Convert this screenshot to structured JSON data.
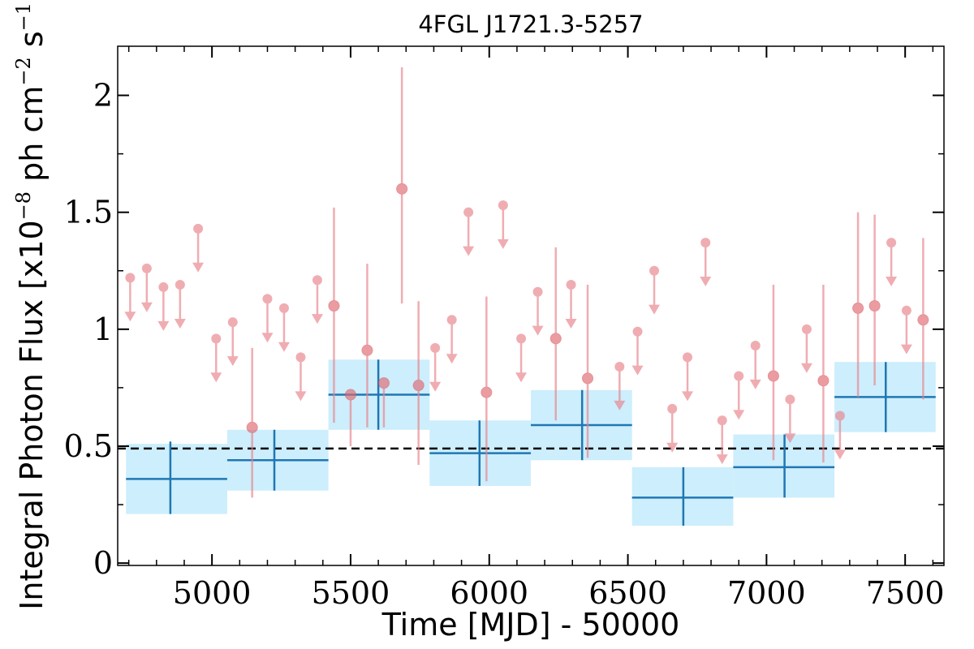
{
  "chart_data": {
    "type": "scatter",
    "title": "4FGL J1721.3-5257",
    "xlabel": "Time [MJD] - 50000",
    "ylabel": {
      "prefix": "Integral Photon Flux [x10",
      "exp1": "−8",
      "mid": " ph cm",
      "exp2": "−2",
      "mid2": " s",
      "exp3": "−1",
      "suffix": "]"
    },
    "xlim": [
      4660,
      7640
    ],
    "ylim": [
      -0.01,
      2.21
    ],
    "xticks": [
      5000,
      5500,
      6000,
      6500,
      7000,
      7500
    ],
    "xtick_labels": [
      "5000",
      "5500",
      "6000",
      "6500",
      "7000",
      "7500"
    ],
    "yticks": [
      0,
      0.5,
      1,
      1.5,
      2
    ],
    "ytick_labels": [
      "0",
      "0.5",
      "1",
      "1.5",
      "2"
    ],
    "reference_line": 0.49,
    "colors": {
      "monthly": "#e8828a",
      "yearly_line": "#1f77b4",
      "yearly_box": "#cdeefc",
      "reference": "#000000"
    },
    "monthly_detections": [
      {
        "x": 5145,
        "y": 0.58,
        "lo": 0.28,
        "hi": 0.92
      },
      {
        "x": 5440,
        "y": 1.1,
        "lo": 0.6,
        "hi": 1.52
      },
      {
        "x": 5500,
        "y": 0.72,
        "lo": 0.5,
        "hi": 0.72
      },
      {
        "x": 5560,
        "y": 0.91,
        "lo": 0.58,
        "hi": 1.28
      },
      {
        "x": 5620,
        "y": 0.77,
        "lo": 0.58,
        "hi": 0.77
      },
      {
        "x": 5685,
        "y": 1.6,
        "lo": 1.11,
        "hi": 2.12
      },
      {
        "x": 5745,
        "y": 0.76,
        "lo": 0.42,
        "hi": 1.12
      },
      {
        "x": 5990,
        "y": 0.73,
        "lo": 0.35,
        "hi": 1.14
      },
      {
        "x": 6240,
        "y": 0.96,
        "lo": 0.61,
        "hi": 1.35
      },
      {
        "x": 6355,
        "y": 0.79,
        "lo": 0.45,
        "hi": 1.19
      },
      {
        "x": 7025,
        "y": 0.8,
        "lo": 0.44,
        "hi": 1.19
      },
      {
        "x": 7205,
        "y": 0.78,
        "lo": 0.43,
        "hi": 1.19
      },
      {
        "x": 7330,
        "y": 1.09,
        "lo": 0.71,
        "hi": 1.5
      },
      {
        "x": 7390,
        "y": 1.1,
        "lo": 0.76,
        "hi": 1.49
      },
      {
        "x": 7565,
        "y": 1.04,
        "lo": 0.7,
        "hi": 1.39
      }
    ],
    "monthly_upper_limits": [
      {
        "x": 4705,
        "y": 1.22
      },
      {
        "x": 4765,
        "y": 1.26
      },
      {
        "x": 4825,
        "y": 1.18
      },
      {
        "x": 4885,
        "y": 1.19
      },
      {
        "x": 4950,
        "y": 1.43
      },
      {
        "x": 5015,
        "y": 0.96
      },
      {
        "x": 5075,
        "y": 1.03
      },
      {
        "x": 5200,
        "y": 1.13
      },
      {
        "x": 5260,
        "y": 1.09
      },
      {
        "x": 5320,
        "y": 0.88
      },
      {
        "x": 5380,
        "y": 1.21
      },
      {
        "x": 5805,
        "y": 0.92
      },
      {
        "x": 5865,
        "y": 1.04
      },
      {
        "x": 5925,
        "y": 1.5
      },
      {
        "x": 6050,
        "y": 1.53
      },
      {
        "x": 6115,
        "y": 0.96
      },
      {
        "x": 6175,
        "y": 1.16
      },
      {
        "x": 6295,
        "y": 1.19
      },
      {
        "x": 6470,
        "y": 0.84
      },
      {
        "x": 6535,
        "y": 0.99
      },
      {
        "x": 6595,
        "y": 1.25
      },
      {
        "x": 6660,
        "y": 0.66
      },
      {
        "x": 6715,
        "y": 0.88
      },
      {
        "x": 6780,
        "y": 1.37
      },
      {
        "x": 6840,
        "y": 0.61
      },
      {
        "x": 6900,
        "y": 0.8
      },
      {
        "x": 6960,
        "y": 0.93
      },
      {
        "x": 7085,
        "y": 0.7
      },
      {
        "x": 7145,
        "y": 1.0
      },
      {
        "x": 7265,
        "y": 0.63
      },
      {
        "x": 7505,
        "y": 1.08
      },
      {
        "x": 7450,
        "y": 1.37
      }
    ],
    "yearly_bins": [
      {
        "x0": 4690,
        "x1": 5055,
        "xc": 4850,
        "y": 0.36,
        "ylo": 0.21,
        "yhi": 0.52,
        "box_lo": 0.21,
        "box_hi": 0.51
      },
      {
        "x0": 5055,
        "x1": 5420,
        "xc": 5225,
        "y": 0.44,
        "ylo": 0.31,
        "yhi": 0.57,
        "box_lo": 0.31,
        "box_hi": 0.57
      },
      {
        "x0": 5420,
        "x1": 5785,
        "xc": 5600,
        "y": 0.72,
        "ylo": 0.57,
        "yhi": 0.87,
        "box_lo": 0.57,
        "box_hi": 0.87
      },
      {
        "x0": 5785,
        "x1": 6150,
        "xc": 5965,
        "y": 0.47,
        "ylo": 0.33,
        "yhi": 0.61,
        "box_lo": 0.33,
        "box_hi": 0.61
      },
      {
        "x0": 6150,
        "x1": 6515,
        "xc": 6335,
        "y": 0.59,
        "ylo": 0.44,
        "yhi": 0.74,
        "box_lo": 0.44,
        "box_hi": 0.74
      },
      {
        "x0": 6515,
        "x1": 6880,
        "xc": 6700,
        "y": 0.28,
        "ylo": 0.16,
        "yhi": 0.41,
        "box_lo": 0.16,
        "box_hi": 0.41
      },
      {
        "x0": 6880,
        "x1": 7245,
        "xc": 7065,
        "y": 0.41,
        "ylo": 0.28,
        "yhi": 0.55,
        "box_lo": 0.28,
        "box_hi": 0.55
      },
      {
        "x0": 7245,
        "x1": 7610,
        "xc": 7430,
        "y": 0.71,
        "ylo": 0.56,
        "yhi": 0.86,
        "box_lo": 0.56,
        "box_hi": 0.86
      }
    ]
  }
}
